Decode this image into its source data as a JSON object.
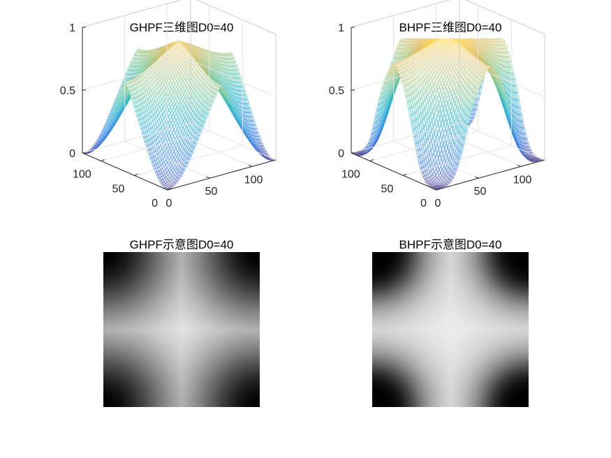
{
  "figure": {
    "background": "#ffffff"
  },
  "chart_data": [
    {
      "type": "surface",
      "title": "GHPF三维图D0=40",
      "filter": "gaussian",
      "D0": 40,
      "grid_size": 128,
      "x_ticks": [
        "0",
        "50",
        "100"
      ],
      "y_ticks": [
        "0",
        "50",
        "100"
      ],
      "z_ticks": [
        "0",
        "0.5",
        "1"
      ],
      "zlim": [
        0,
        1
      ],
      "colormap": "parula",
      "grid": true
    },
    {
      "type": "surface",
      "title": "BHPF三维图D0=40",
      "filter": "butterworth",
      "D0": 40,
      "grid_size": 128,
      "x_ticks": [
        "0",
        "50",
        "100"
      ],
      "y_ticks": [
        "0",
        "50",
        "100"
      ],
      "z_ticks": [
        "0",
        "0.5",
        "1"
      ],
      "zlim": [
        0,
        1
      ],
      "colormap": "parula",
      "grid": true
    },
    {
      "type": "heatmap",
      "title": "GHPF示意图D0=40",
      "filter": "gaussian",
      "D0": 40,
      "colormap": "gray"
    },
    {
      "type": "heatmap",
      "title": "BHPF示意图D0=40",
      "filter": "butterworth",
      "D0": 40,
      "colormap": "gray"
    }
  ]
}
